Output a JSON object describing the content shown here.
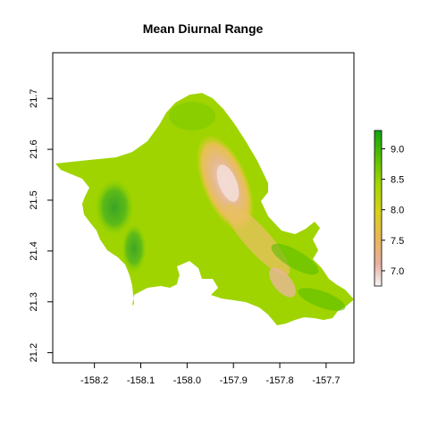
{
  "title": "Mean Diurnal Range",
  "chart_data": {
    "type": "heatmap",
    "title": "Mean Diurnal Range",
    "xlabel": "",
    "ylabel": "",
    "xlim": [
      -158.29,
      -157.64
    ],
    "ylim": [
      21.18,
      21.79
    ],
    "x_ticks": [
      -158.2,
      -158.1,
      -158.0,
      -157.9,
      -157.8,
      -157.7
    ],
    "x_tick_labels": [
      "-158.2",
      "-158.1",
      "-158.0",
      "-157.9",
      "-157.8",
      "-157.7"
    ],
    "y_ticks": [
      21.2,
      21.3,
      21.4,
      21.5,
      21.6,
      21.7
    ],
    "y_tick_labels": [
      "21.2",
      "21.3",
      "21.4",
      "21.5",
      "21.6",
      "21.7"
    ],
    "legend": {
      "placement": "right",
      "range": [
        6.75,
        9.3
      ],
      "ticks": [
        7.0,
        7.5,
        8.0,
        8.5,
        9.0
      ],
      "tick_labels": [
        "7.0",
        "7.5",
        "8.0",
        "8.5",
        "9.0"
      ],
      "colors": [
        "#f2f2f2",
        "#ebb3a0",
        "#eab85e",
        "#d8d21a",
        "#a6d700",
        "#5cc200",
        "#10a810"
      ]
    },
    "colors": {
      "low": "#efc6b5",
      "mid_low": "#e8b860",
      "mid": "#d4d41c",
      "mid_high": "#9bd400",
      "high": "#3eb21a"
    }
  }
}
